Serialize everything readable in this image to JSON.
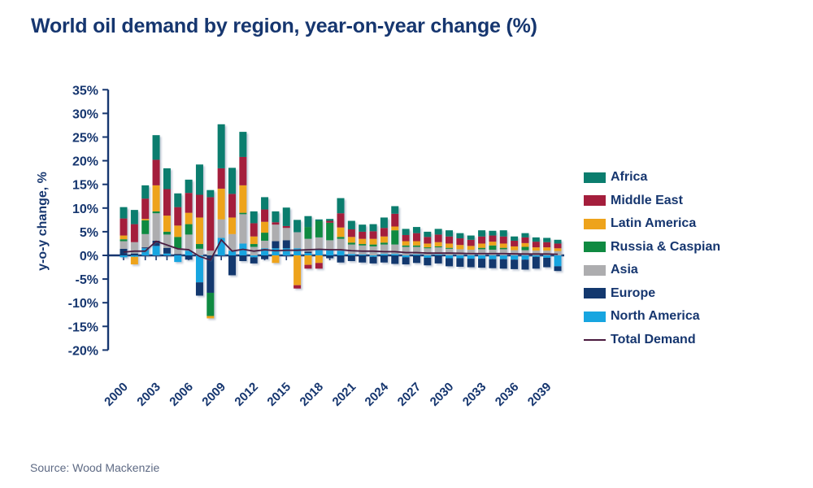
{
  "title": "World oil demand by region, year-on-year change (%)",
  "source": "Source: Wood Mackenzie",
  "colors": {
    "text_navy": "#16366F",
    "axis": "#16366F",
    "africa": "#0B7D6E",
    "middle_east": "#A41E3C",
    "latin_america": "#EEA31B",
    "russia_caspian": "#0F8A41",
    "asia": "#ADADAF",
    "europe": "#13386E",
    "north_america": "#17A5E0",
    "total_line": "#4A1A3E",
    "source_text": "#5E6A84"
  },
  "legend": [
    {
      "label": "Africa",
      "color": "#0B7D6E",
      "swatch": "box"
    },
    {
      "label": "Middle East",
      "color": "#A41E3C",
      "swatch": "box"
    },
    {
      "label": "Latin America",
      "color": "#EEA31B",
      "swatch": "box"
    },
    {
      "label": "Russia & Caspian",
      "color": "#0F8A41",
      "swatch": "box"
    },
    {
      "label": "Asia",
      "color": "#ADADAF",
      "swatch": "box"
    },
    {
      "label": "Europe",
      "color": "#13386E",
      "swatch": "box"
    },
    {
      "label": "North America",
      "color": "#17A5E0",
      "swatch": "box"
    },
    {
      "label": "Total Demand",
      "color": "#4A1A3E",
      "swatch": "line"
    }
  ],
  "chart_data": {
    "type": "bar",
    "stacked": true,
    "title": "World oil demand by region, year-on-year change (%)",
    "xlabel": "",
    "ylabel": "y-o-y change, %",
    "ylim": [
      -20,
      35
    ],
    "y_tick_step": 5,
    "y_tick_labels": [
      "35%",
      "30%",
      "25%",
      "20%",
      "15%",
      "10%",
      "5%",
      "0%",
      "-5%",
      "-10%",
      "-15%",
      "-20%"
    ],
    "x": [
      2000,
      2001,
      2002,
      2003,
      2004,
      2005,
      2006,
      2007,
      2008,
      2009,
      2010,
      2011,
      2012,
      2013,
      2014,
      2015,
      2016,
      2017,
      2018,
      2019,
      2020,
      2021,
      2022,
      2023,
      2024,
      2025,
      2026,
      2027,
      2028,
      2029,
      2030,
      2031,
      2032,
      2033,
      2034,
      2035,
      2036,
      2037,
      2038,
      2039,
      2040
    ],
    "x_tick_labels": [
      "2000",
      "2003",
      "2006",
      "2009",
      "2012",
      "2015",
      "2018",
      "2021",
      "2024",
      "2027",
      "2030",
      "2033",
      "2036",
      "2039"
    ],
    "grid": false,
    "legend_position": "right",
    "series": [
      {
        "name": "North America",
        "color": "#17A5E0",
        "values": [
          -0.4,
          -0.3,
          1.5,
          2.0,
          0.4,
          -1.4,
          1.0,
          -5.7,
          0.0,
          3.7,
          1.0,
          2.5,
          -0.4,
          1.5,
          1.5,
          1.5,
          1.5,
          0.5,
          1.3,
          1.1,
          1.0,
          0.3,
          0.2,
          -0.3,
          0.3,
          0.3,
          -0.4,
          0.2,
          -0.5,
          0.2,
          -0.6,
          -0.6,
          -0.7,
          -0.7,
          -0.8,
          -0.8,
          -0.9,
          -0.9,
          -0.3,
          -0.5,
          -2.3
        ]
      },
      {
        "name": "Europe",
        "color": "#13386E",
        "values": [
          1.4,
          0.4,
          0.2,
          1.1,
          1.2,
          0.3,
          -0.9,
          -2.8,
          -7.9,
          0.0,
          -4.2,
          -1.2,
          -1.3,
          -0.8,
          1.5,
          1.7,
          0.0,
          0.3,
          0.0,
          -0.6,
          -1.5,
          -1.2,
          -1.5,
          -1.4,
          -1.5,
          -1.8,
          -1.5,
          -1.6,
          -1.6,
          -1.7,
          -1.7,
          -1.8,
          -1.8,
          -1.9,
          -1.9,
          -2.0,
          -2.0,
          -2.1,
          -2.5,
          -2.0,
          -1.0
        ]
      },
      {
        "name": "Asia",
        "color": "#ADADAF",
        "values": [
          1.6,
          2.4,
          2.8,
          5.8,
          2.8,
          1.2,
          3.4,
          1.4,
          1.0,
          3.9,
          3.5,
          6.2,
          1.8,
          1.6,
          3.5,
          2.6,
          3.4,
          2.7,
          2.5,
          2.1,
          2.5,
          2.0,
          1.9,
          1.9,
          2.0,
          2.0,
          1.8,
          1.6,
          1.5,
          1.5,
          1.4,
          1.3,
          1.2,
          1.3,
          1.2,
          1.3,
          1.1,
          1.1,
          1.0,
          1.0,
          0.9
        ]
      },
      {
        "name": "Russia & Caspian",
        "color": "#0F8A41",
        "values": [
          0.4,
          0.0,
          2.9,
          0.4,
          0.6,
          2.4,
          2.2,
          1.0,
          -4.9,
          0.0,
          0.0,
          0.3,
          0.6,
          1.7,
          0.0,
          0.0,
          0.0,
          2.5,
          3.5,
          3.7,
          0.4,
          0.4,
          0.3,
          0.4,
          0.4,
          3.0,
          0.3,
          0.3,
          0.2,
          0.2,
          0.2,
          0.0,
          0.0,
          0.3,
          0.9,
          0.3,
          0.0,
          0.7,
          0.0,
          0.0,
          0.0
        ]
      },
      {
        "name": "Latin America",
        "color": "#EEA31B",
        "values": [
          0.8,
          -1.6,
          0.3,
          5.5,
          3.4,
          2.4,
          2.4,
          5.6,
          -0.5,
          6.5,
          3.5,
          5.8,
          1.6,
          2.3,
          -1.6,
          0.0,
          -6.3,
          -2.0,
          -1.6,
          0.0,
          2.0,
          1.2,
          1.1,
          1.2,
          1.3,
          0.8,
          0.9,
          0.9,
          0.8,
          0.9,
          0.9,
          0.9,
          0.8,
          0.9,
          0.8,
          0.9,
          0.8,
          0.8,
          0.7,
          0.7,
          0.6
        ]
      },
      {
        "name": "Middle East",
        "color": "#A41E3C",
        "values": [
          3.6,
          3.8,
          4.3,
          5.4,
          5.6,
          3.9,
          4.2,
          4.8,
          11.3,
          4.3,
          5.0,
          6.0,
          2.8,
          2.6,
          0.5,
          0.4,
          -0.7,
          -0.8,
          -1.2,
          0.4,
          3.0,
          1.6,
          1.5,
          1.6,
          1.8,
          2.7,
          1.3,
          1.7,
          1.4,
          1.6,
          1.5,
          1.4,
          1.3,
          1.5,
          1.3,
          1.5,
          1.2,
          1.2,
          1.2,
          1.1,
          1.0
        ]
      },
      {
        "name": "Africa",
        "color": "#0B7D6E",
        "values": [
          2.4,
          3.0,
          2.8,
          5.2,
          4.4,
          2.9,
          2.8,
          6.4,
          1.5,
          9.3,
          5.5,
          5.3,
          2.5,
          2.6,
          2.3,
          3.9,
          2.6,
          2.3,
          0.3,
          0.4,
          3.2,
          1.8,
          1.5,
          1.5,
          2.2,
          1.6,
          1.3,
          1.3,
          1.1,
          1.2,
          1.3,
          1.1,
          0.9,
          1.3,
          1.0,
          1.3,
          0.9,
          0.9,
          0.9,
          0.9,
          0.8
        ]
      }
    ],
    "line_series": {
      "name": "Total Demand",
      "color": "#4A1A3E",
      "values": [
        0.7,
        0.9,
        0.9,
        3.0,
        2.2,
        1.4,
        1.2,
        -0.2,
        -1.0,
        3.3,
        0.9,
        1.3,
        0.9,
        1.2,
        1.0,
        1.1,
        1.1,
        1.2,
        1.3,
        1.2,
        1.2,
        1.0,
        0.9,
        0.9,
        0.8,
        0.8,
        0.6,
        0.6,
        0.5,
        0.5,
        0.5,
        0.45,
        0.4,
        0.4,
        0.4,
        0.4,
        0.35,
        0.3,
        0.3,
        0.3,
        0.25
      ]
    }
  }
}
